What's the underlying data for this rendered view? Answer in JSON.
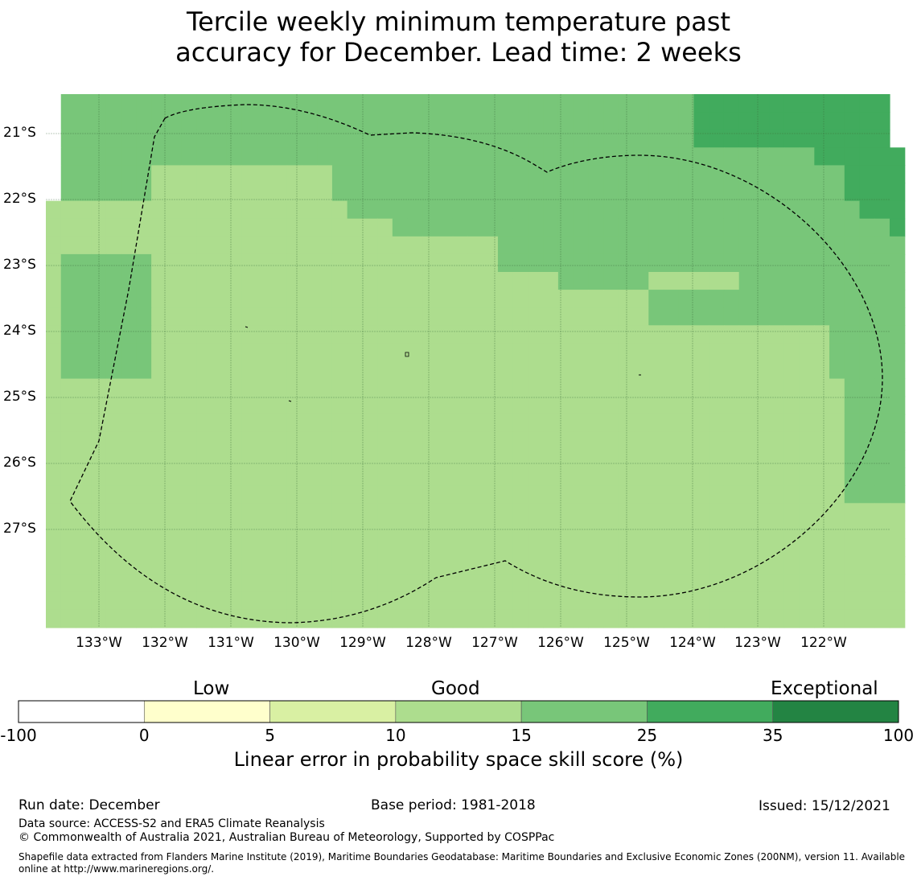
{
  "title_line1": "Tercile weekly minimum temperature past",
  "title_line2": "accuracy for December. Lead time: 2 weeks",
  "map": {
    "lat_labels": [
      "21°S",
      "22°S",
      "23°S",
      "24°S",
      "25°S",
      "26°S",
      "27°S"
    ],
    "lon_labels": [
      "133°W",
      "132°W",
      "131°W",
      "130°W",
      "129°W",
      "128°W",
      "127°W",
      "126°W",
      "125°W",
      "124°W",
      "123°W",
      "122°W"
    ],
    "grid_value_legend": {
      "B": "10 to 15",
      "C": "15 to 25",
      "D": "25 to 35"
    },
    "grid": [
      "ACCCCCCCCCCCCCCCCCCCCCCCCCCCCCCCCCCCCCCCCCCDDDDDDDDDDDDD",
      "ACCCCCCCCCCCCCCCCCCCCCCCCCCCCCCCCCCCCCCCCCCDDDDDDDDDDDDD",
      "ACCCCCCCCCCCCCCCCCCCCCCCCCCCCCCCCCCCCCCCCCCDDDDDDDDDDDDD",
      "ACCCCCCCCCCCCCCCCCCCCCCCCCCCCCCCCCCCCCCCCCCCCCCCCCCDDDDDD",
      "ACCCCCCBBBBBBBBBBBBCCCCCCCCCCCCCCCCCCCCCCCCCCCCCCCCCCDDDD",
      "ACCCCCCBBBBBBBBBBBBCCCCCCCCCCCCCCCCCCCCCCCCCCCCCCCCCCDDDD",
      "BBBBBBBBBBBBBBBBBBBBCCCCCCCCCCCCCCCCCCCCCCCCCCCCCCCCCCDDD",
      "BBBBBBBBBBBBBBBBBBBBBBBCCCCCCCCCCCCCCCCCCCCCCCCCCCCCCCCCD",
      "BBBBBBBBBBBBBBBBBBBBBBBBBBBBBBCCCCCCCCCCCCCCCCCCCCCCCCCCC",
      "BCCCCCCBBBBBBBBBBBBBBBBBBBBBBBCCCCCCCCCCCCCCCCCCCCCCCCCCC",
      "BCCCCCCBBBBBBBBBBBBBBBBBBBBBBBBBBBCCCCCCBBBBBBCCCCCCCCCCC",
      "BCCCCCCBBBBBBBBBBBBBBBBBBBBBBBBBBBBBBBBBCCCCCCCCCCCCCCCCC",
      "BCCCCCCBBBBBBBBBBBBBBBBBBBBBBBBBBBBBBBBBCCCCCCCCCCCCCCCCC",
      "BCCCCCCBBBBBBBBBBBBBBBBBBBBBBBBBBBBBBBBBBBBBBBBBBBBBCCCCC",
      "BCCCCCCBBBBBBBBBBBBBBBBBBBBBBBBBBBBBBBBBBBBBBBBBBBBBCCCCC",
      "BCCCCCCBBBBBBBBBBBBBBBBBBBBBBBBBBBBBBBBBBBBBBBBBBBBBCCCCC",
      "BBBBBBBBBBBBBBBBBBBBBBBBBBBBBBBBBBBBBBBBBBBBBBBBBBBBBCCCC",
      "BBBBBBBBBBBBBBBBBBBBBBBBBBBBBBBBBBBBBBBBBBBBBBBBBBBBBCCCC",
      "BBBBBBBBBBBBBBBBBBBBBBBBBBBBBBBBBBBBBBBBBBBBBBBBBBBBBCCCC",
      "BBBBBBBBBBBBBBBBBBBBBBBBBBBBBBBBBBBBBBBBBBBBBBBBBBBBBCCCC",
      "BBBBBBBBBBBBBBBBBBBBBBBBBBBBBBBBBBBBBBBBBBBBBBBBBBBBBCCCC",
      "BBBBBBBBBBBBBBBBBBBBBBBBBBBBBBBBBBBBBBBBBBBBBBBBBBBBBCCCC",
      "BBBBBBBBBBBBBBBBBBBBBBBBBBBBBBBBBBBBBBBBBBBBBBBBBBBBBCCCC",
      "BBBBBBBBBBBBBBBBBBBBBBBBBBBBBBBBBBBBBBBBBBBBBBBBBBBBBBBBB",
      "BBBBBBBBBBBBBBBBBBBBBBBBBBBBBBBBBBBBBBBBBBBBBBBBBBBBBBBBB",
      "BBBBBBBBBBBBBBBBBBBBBBBBBBBBBBBBBBBBBBBBBBBBBBBBBBBBBBBBB",
      "BBBBBBBBBBBBBBBBBBBBBBBBBBBBBBBBBBBBBBBBBBBBBBBBBBBBBBBBB",
      "BBBBBBBBBBBBBBBBBBBBBBBBBBBBBBBBBBBBBBBBBBBBBBBBBBBBBBBBB",
      "BBBBBBBBBBBBBBBBBBBBBBBBBBBBBBBBBBBBBBBBBBBBBBBBBBBBBBBBB",
      "BBBBBBBBBBBBBBBBBBBBBBBBBBBBBBBBBBBBBBBBBBBBBBBBBBBBBBBBB"
    ]
  },
  "colorbar": {
    "categories": [
      "Low",
      "Good",
      "Exceptional"
    ],
    "ticks": [
      "-100",
      "0",
      "5",
      "10",
      "15",
      "25",
      "35",
      "100"
    ],
    "bins": [
      {
        "range": "-100 to 0",
        "color": "#ffffff"
      },
      {
        "range": "0 to 5",
        "color": "#ffffcc"
      },
      {
        "range": "5 to 10",
        "color": "#d9f0a3"
      },
      {
        "range": "10 to 15",
        "color": "#addd8e"
      },
      {
        "range": "15 to 25",
        "color": "#78c679"
      },
      {
        "range": "25 to 35",
        "color": "#41ab5d"
      },
      {
        "range": "35 to 100",
        "color": "#238443"
      }
    ],
    "title": "Linear error in probability space skill score (%)"
  },
  "footer": {
    "run_date": "Run date: December",
    "base_period": "Base period: 1981-2018",
    "issued": "Issued: 15/12/2021",
    "data_source": "Data source: ACCESS-S2 and ERA5 Climate Reanalysis",
    "copyright": "© Commonwealth of Australia 2021, Australian Bureau of Meteorology, Supported by COSPPac",
    "shapefile_line1": "Shapefile data extracted from Flanders Marine Institute (2019), Maritime Boundaries Geodatabase: Maritime Boundaries and Exclusive Economic Zones (200NM), version 11. Available",
    "shapefile_line2": "online at http://www.marineregions.org/."
  }
}
